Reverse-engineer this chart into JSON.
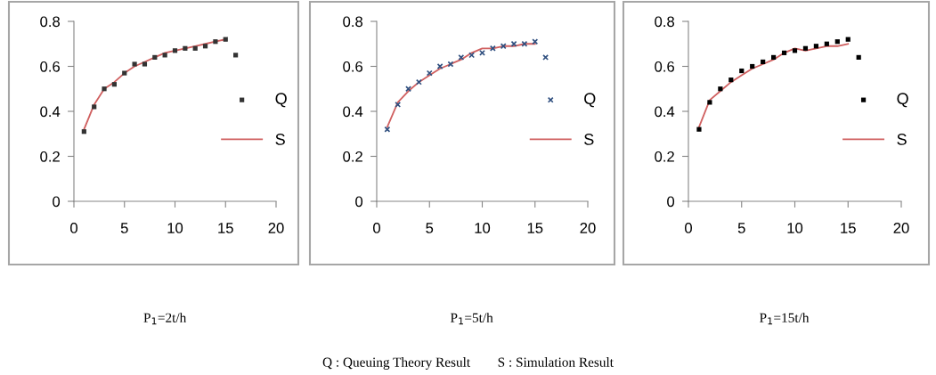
{
  "chart_data": [
    {
      "type": "scatter",
      "xlabel": "P$_{1}$=2t/h",
      "xlim": [
        0,
        20
      ],
      "xticks": [
        0,
        5,
        10,
        15,
        20
      ],
      "ylim": [
        0,
        0.8
      ],
      "yticks": [
        0,
        0.2,
        0.4,
        0.6,
        0.8
      ],
      "grid": false,
      "legend": "right",
      "series": [
        {
          "name": "Q",
          "marker": "square",
          "color": "#333333",
          "x": [
            1,
            2,
            3,
            4,
            5,
            6,
            7,
            8,
            9,
            10,
            11,
            12,
            13,
            14,
            15,
            16
          ],
          "values": [
            0.31,
            0.42,
            0.5,
            0.52,
            0.57,
            0.61,
            0.61,
            0.64,
            0.65,
            0.67,
            0.68,
            0.68,
            0.69,
            0.71,
            0.72,
            0.65
          ]
        },
        {
          "name": "S",
          "type": "line",
          "line_style": "solid",
          "color": "#d06060",
          "x": [
            1,
            2,
            3,
            4,
            5,
            6,
            7,
            8,
            9,
            10,
            11,
            12,
            13,
            14,
            15
          ],
          "values": [
            0.32,
            0.43,
            0.5,
            0.53,
            0.57,
            0.6,
            0.62,
            0.64,
            0.66,
            0.67,
            0.68,
            0.69,
            0.7,
            0.71,
            0.72
          ]
        }
      ]
    },
    {
      "type": "scatter",
      "xlabel": "P$_{1}$=5t/h",
      "xlim": [
        0,
        20
      ],
      "xticks": [
        0,
        5,
        10,
        15,
        20
      ],
      "ylim": [
        0,
        0.8
      ],
      "yticks": [
        0,
        0.2,
        0.4,
        0.6,
        0.8
      ],
      "grid": false,
      "legend": "right",
      "annotations": [
        "Q : Queuing Theory Result        S : Simulation Result"
      ],
      "series": [
        {
          "name": "Q",
          "marker": "cross",
          "color": "#2f4f7f",
          "x": [
            1,
            2,
            3,
            4,
            5,
            6,
            7,
            8,
            9,
            10,
            11,
            12,
            13,
            14,
            15,
            16
          ],
          "values": [
            0.32,
            0.43,
            0.5,
            0.53,
            0.57,
            0.6,
            0.61,
            0.64,
            0.65,
            0.66,
            0.68,
            0.69,
            0.7,
            0.7,
            0.71,
            0.64
          ]
        },
        {
          "name": "S",
          "type": "line",
          "line_style": "solid",
          "color": "#d06060",
          "x": [
            1,
            2,
            3,
            4,
            5,
            6,
            7,
            8,
            9,
            10,
            11,
            12,
            13,
            14,
            15
          ],
          "values": [
            0.33,
            0.44,
            0.49,
            0.53,
            0.56,
            0.59,
            0.61,
            0.63,
            0.66,
            0.68,
            0.68,
            0.69,
            0.69,
            0.7,
            0.7
          ]
        }
      ]
    },
    {
      "type": "scatter",
      "xlabel": "P$_{1}$=15t/h",
      "xlim": [
        0,
        20
      ],
      "xticks": [
        0,
        5,
        10,
        15,
        20
      ],
      "ylim": [
        0,
        0.8
      ],
      "yticks": [
        0,
        0.2,
        0.4,
        0.6,
        0.8
      ],
      "grid": false,
      "legend": "right",
      "series": [
        {
          "name": "Q",
          "marker": "square",
          "color": "#000000",
          "x": [
            1,
            2,
            3,
            4,
            5,
            6,
            7,
            8,
            9,
            10,
            11,
            12,
            13,
            14,
            15,
            16
          ],
          "values": [
            0.32,
            0.44,
            0.5,
            0.54,
            0.58,
            0.6,
            0.62,
            0.64,
            0.66,
            0.67,
            0.68,
            0.69,
            0.7,
            0.71,
            0.72,
            0.64
          ]
        },
        {
          "name": "S",
          "type": "line",
          "line_style": "solid",
          "color": "#d06060",
          "x": [
            1,
            2,
            3,
            4,
            5,
            6,
            7,
            8,
            9,
            10,
            11,
            12,
            13,
            14,
            15
          ],
          "values": [
            0.33,
            0.45,
            0.49,
            0.53,
            0.56,
            0.59,
            0.61,
            0.63,
            0.66,
            0.68,
            0.67,
            0.68,
            0.69,
            0.69,
            0.7
          ]
        }
      ]
    }
  ]
}
